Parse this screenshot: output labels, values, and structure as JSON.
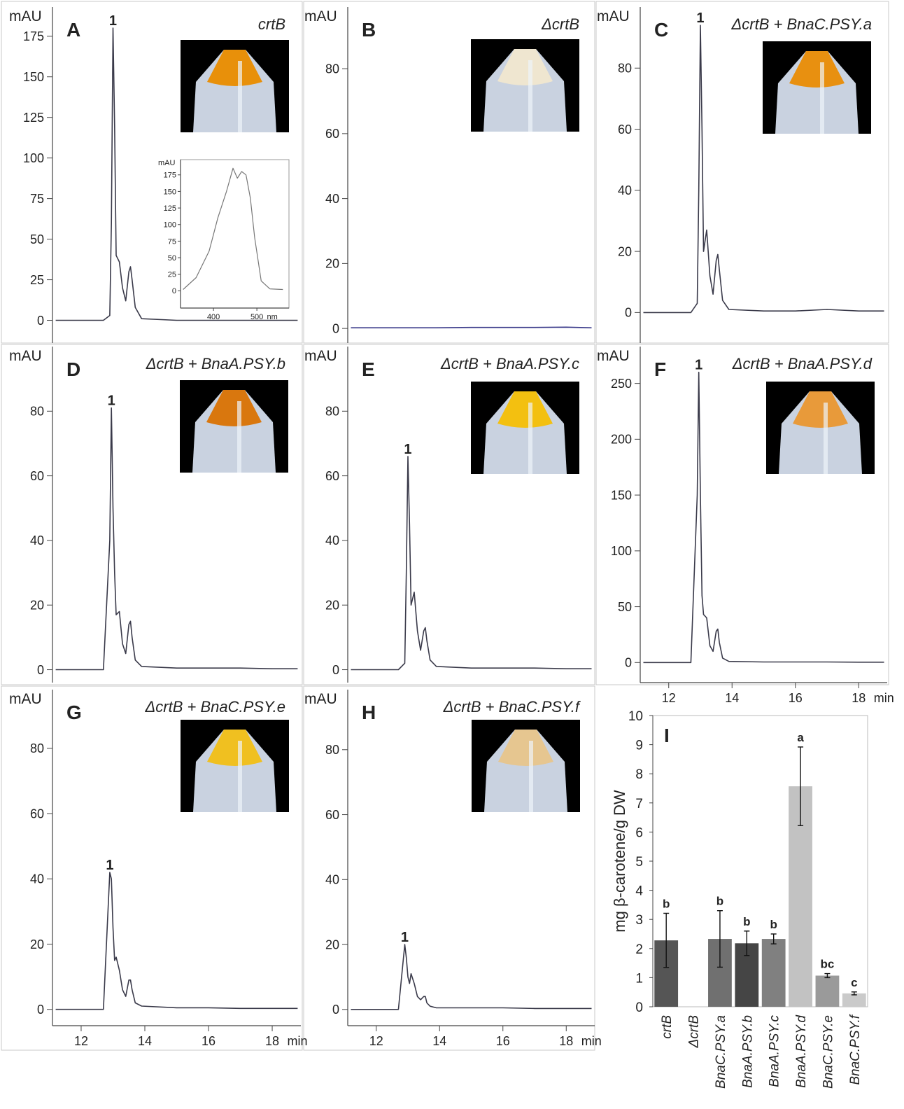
{
  "chart_data": [
    {
      "type": "line",
      "panel": "A",
      "annotation": "crtB",
      "ylabel": "mAU",
      "peak_label": "1",
      "color": "#3a3a4a",
      "x": [
        11.2,
        12.7,
        12.9,
        12.95,
        13.0,
        13.05,
        13.1,
        13.2,
        13.3,
        13.4,
        13.5,
        13.55,
        13.6,
        13.7,
        13.9,
        15,
        16,
        17,
        18,
        18.8
      ],
      "values": [
        0,
        0,
        3,
        60,
        180,
        120,
        40,
        36,
        20,
        12,
        30,
        33,
        25,
        8,
        1,
        0,
        0,
        0,
        0,
        0
      ],
      "xlim": [
        11.1,
        18.9
      ],
      "ylim": [
        -14,
        193
      ],
      "yticks": [
        0,
        25,
        50,
        75,
        100,
        125,
        150,
        175
      ]
    },
    {
      "type": "line",
      "ylabel": "mAU",
      "xlabel": "nm",
      "color": "#777777",
      "x": [
        330,
        360,
        390,
        410,
        430,
        445,
        455,
        465,
        475,
        485,
        495,
        510,
        530,
        560
      ],
      "values": [
        2,
        20,
        60,
        110,
        150,
        185,
        170,
        180,
        175,
        140,
        80,
        15,
        3,
        2
      ],
      "xlim": [
        324,
        574
      ],
      "ylim": [
        -26,
        198
      ],
      "xticks": [
        400,
        500
      ],
      "yticks": [
        0,
        25,
        50,
        75,
        100,
        125,
        150,
        175
      ]
    },
    {
      "type": "line",
      "panel": "B",
      "annotation": "ΔcrtB",
      "ylabel": "mAU",
      "color": "#3a3a8a",
      "x": [
        11.2,
        12.7,
        12.9,
        12.95,
        13.0,
        13.05,
        13.1,
        13.2,
        13.3,
        13.4,
        13.5,
        13.55,
        13.6,
        13.7,
        13.9,
        15,
        16,
        17,
        18,
        18.8
      ],
      "values": [
        0.2,
        0.2,
        0.2,
        0.2,
        0.2,
        0.2,
        0.2,
        0.2,
        0.2,
        0.2,
        0.2,
        0.2,
        0.2,
        0.2,
        0.2,
        0.3,
        0.3,
        0.3,
        0.4,
        0.2
      ],
      "xlim": [
        11.1,
        18.9
      ],
      "ylim": [
        -4.5,
        99
      ],
      "yticks": [
        0,
        20,
        40,
        60,
        80
      ]
    },
    {
      "type": "line",
      "panel": "C",
      "annotation": "ΔcrtB + BnaC.PSY.a",
      "ylabel": "mAU",
      "peak_label": "1",
      "color": "#3a3a4a",
      "x": [
        11.2,
        12.7,
        12.9,
        12.95,
        13.0,
        13.05,
        13.1,
        13.2,
        13.3,
        13.4,
        13.5,
        13.55,
        13.6,
        13.7,
        13.9,
        15,
        16,
        17,
        18,
        18.8
      ],
      "values": [
        0,
        0,
        3,
        40,
        94,
        60,
        20,
        27,
        12,
        6,
        17,
        19,
        14,
        4,
        1,
        0.5,
        0.5,
        1,
        0.5,
        0.5
      ],
      "xlim": [
        11.1,
        18.9
      ],
      "ylim": [
        -10,
        100
      ],
      "yticks": [
        0,
        20,
        40,
        60,
        80
      ]
    },
    {
      "type": "line",
      "panel": "D",
      "annotation": "ΔcrtB + BnaA.PSY.b",
      "ylabel": "mAU",
      "peak_label": "1",
      "color": "#3a3a4a",
      "x": [
        11.2,
        12.7,
        12.9,
        12.95,
        13.0,
        13.05,
        13.1,
        13.2,
        13.3,
        13.4,
        13.5,
        13.55,
        13.6,
        13.7,
        13.9,
        15,
        16,
        17,
        18,
        18.8
      ],
      "values": [
        0,
        0,
        40,
        81,
        50,
        30,
        17,
        18,
        8,
        5,
        14,
        15,
        10,
        3,
        1,
        0.5,
        0.5,
        0.5,
        0.3,
        0.3
      ],
      "xlim": [
        11.1,
        18.9
      ],
      "ylim": [
        -4,
        100
      ],
      "yticks": [
        0,
        20,
        40,
        60,
        80
      ]
    },
    {
      "type": "line",
      "panel": "E",
      "annotation": "ΔcrtB + BnaA.PSY.c",
      "ylabel": "mAU",
      "peak_label": "1",
      "color": "#3a3a4a",
      "x": [
        11.2,
        12.7,
        12.9,
        12.95,
        13.0,
        13.05,
        13.1,
        13.2,
        13.3,
        13.4,
        13.5,
        13.55,
        13.6,
        13.7,
        13.9,
        15,
        16,
        17,
        18,
        18.8
      ],
      "values": [
        0,
        0,
        2,
        30,
        66,
        45,
        20,
        24,
        12,
        6,
        12,
        13,
        9,
        3,
        1,
        0.5,
        0.5,
        0.5,
        0.3,
        0.3
      ],
      "xlim": [
        11.1,
        18.9
      ],
      "ylim": [
        -4,
        100
      ],
      "yticks": [
        0,
        20,
        40,
        60,
        80
      ]
    },
    {
      "type": "line",
      "panel": "F",
      "annotation": "ΔcrtB + BnaA.PSY.d",
      "ylabel": "mAU",
      "xlabel": "min",
      "peak_label": "1",
      "color": "#3a3a4a",
      "x": [
        11.2,
        12.7,
        12.9,
        12.95,
        13.0,
        13.05,
        13.1,
        13.2,
        13.3,
        13.4,
        13.5,
        13.55,
        13.6,
        13.7,
        13.9,
        15,
        16,
        17,
        18,
        18.8
      ],
      "values": [
        0,
        0,
        150,
        260,
        150,
        60,
        43,
        40,
        15,
        10,
        28,
        30,
        18,
        4,
        1,
        0.5,
        0.5,
        0.5,
        0.3,
        0.3
      ],
      "xlim": [
        11.1,
        18.9
      ],
      "ylim": [
        -18,
        283
      ],
      "xticks": [
        12,
        14,
        16,
        18
      ],
      "yticks": [
        0,
        50,
        100,
        150,
        200,
        250
      ]
    },
    {
      "type": "line",
      "panel": "G",
      "annotation": "ΔcrtB + BnaC.PSY.e",
      "ylabel": "mAU",
      "xlabel": "min",
      "peak_label": "1",
      "color": "#3a3a4a",
      "x": [
        11.2,
        12.7,
        12.9,
        12.95,
        13.0,
        13.05,
        13.1,
        13.2,
        13.3,
        13.4,
        13.5,
        13.55,
        13.6,
        13.7,
        13.9,
        15,
        16,
        17,
        18,
        18.8
      ],
      "values": [
        0,
        0,
        42,
        40,
        25,
        15,
        16,
        12,
        6,
        4,
        9,
        9,
        6,
        2,
        1,
        0.5,
        0.5,
        0.3,
        0.3,
        0.3
      ],
      "xlim": [
        11.1,
        18.9
      ],
      "ylim": [
        -5,
        98
      ],
      "xticks": [
        12,
        14,
        16,
        18
      ],
      "yticks": [
        0,
        20,
        40,
        60,
        80
      ]
    },
    {
      "type": "line",
      "panel": "H",
      "annotation": "ΔcrtB + BnaC.PSY.f",
      "ylabel": "mAU",
      "xlabel": "min",
      "peak_label": "1",
      "color": "#3a3a4a",
      "x": [
        11.2,
        12.7,
        12.9,
        12.95,
        13.0,
        13.05,
        13.1,
        13.2,
        13.3,
        13.4,
        13.5,
        13.55,
        13.6,
        13.7,
        13.9,
        15,
        16,
        17,
        18,
        18.8
      ],
      "values": [
        0,
        0,
        20,
        16,
        10,
        8,
        11,
        8,
        4,
        3,
        4,
        4,
        2,
        1,
        0.5,
        0.5,
        0.5,
        0.3,
        0.3,
        0.3
      ],
      "xlim": [
        11.1,
        18.9
      ],
      "ylim": [
        -5,
        98.5
      ],
      "xticks": [
        12,
        14,
        16,
        18
      ],
      "yticks": [
        0,
        20,
        40,
        60,
        80
      ]
    },
    {
      "type": "bar",
      "panel": "I",
      "ylabel": "mg β-carotene/g DW",
      "categories": [
        "crtB",
        "ΔcrtB",
        "BnaC.PSY.a",
        "BnaA.PSY.b",
        "BnaA.PSY.c",
        "BnaA.PSY.d",
        "BnaC.PSY.e",
        "BnaC.PSY.f"
      ],
      "values": [
        2.28,
        null,
        2.33,
        2.18,
        2.33,
        7.57,
        1.07,
        0.46
      ],
      "errors": [
        0.93,
        null,
        0.97,
        0.42,
        0.17,
        1.35,
        0.07,
        0.05
      ],
      "letters": [
        "b",
        null,
        "b",
        "b",
        "b",
        "a",
        "bc",
        "c"
      ],
      "colors": [
        "#555555",
        "#555555",
        "#707070",
        "#454545",
        "#808080",
        "#c2c2c2",
        "#9a9a9a",
        "#cacaca"
      ],
      "ylim": [
        0,
        10
      ],
      "yticks": [
        0,
        1,
        2,
        3,
        4,
        5,
        6,
        7,
        8,
        9,
        10
      ]
    }
  ]
}
